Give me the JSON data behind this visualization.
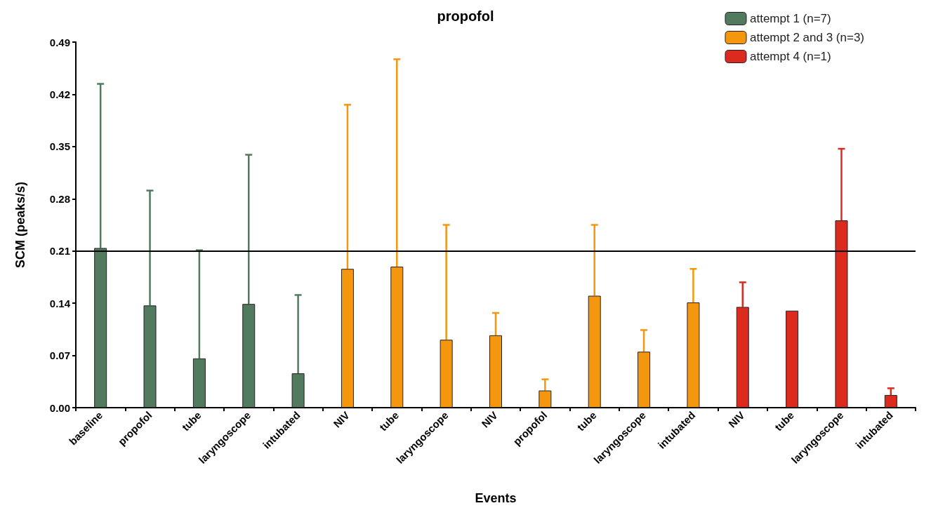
{
  "chart_data": {
    "type": "bar",
    "title": "propofol",
    "xlabel": "Events",
    "ylabel": "SCM (peaks/s)",
    "categories": [
      "baseline",
      "propofol",
      "tube",
      "laryngoscope",
      "intubated",
      "NIV",
      "tube",
      "laryngoscope",
      "NIV",
      "propofol",
      "tube",
      "laryngoscope",
      "intubated",
      "NIV",
      "tube",
      "laryngoscope",
      "intubated"
    ],
    "series": [
      {
        "name": "attempt 1 (n=7)",
        "color": "#527a5e",
        "values": [
          0.214,
          0.137,
          0.066,
          0.139,
          0.046,
          null,
          null,
          null,
          null,
          null,
          null,
          null,
          null,
          null,
          null,
          null,
          null
        ],
        "errors": [
          [
            0.214,
            0.434
          ],
          [
            0.137,
            0.291
          ],
          [
            0.066,
            0.211
          ],
          [
            0.139,
            0.339
          ],
          [
            0.046,
            0.151
          ],
          null,
          null,
          null,
          null,
          null,
          null,
          null,
          null,
          null,
          null,
          null,
          null
        ]
      },
      {
        "name": "attempt 2 and 3 (n=3)",
        "color": "#f5960f",
        "values": [
          null,
          null,
          null,
          null,
          null,
          0.186,
          0.189,
          0.091,
          0.097,
          0.023,
          0.15,
          0.075,
          0.141,
          null,
          null,
          null,
          null
        ],
        "errors": [
          null,
          null,
          null,
          null,
          null,
          [
            0.186,
            0.406
          ],
          [
            0.189,
            0.467
          ],
          [
            0.091,
            0.245
          ],
          [
            0.097,
            0.127
          ],
          [
            0.023,
            0.038
          ],
          [
            0.15,
            0.245
          ],
          [
            0.075,
            0.104
          ],
          [
            0.141,
            0.186
          ],
          null,
          null,
          null,
          null
        ]
      },
      {
        "name": "attempt 4 (n=1)",
        "color": "#dc2a1e",
        "values": [
          null,
          null,
          null,
          null,
          null,
          null,
          null,
          null,
          null,
          null,
          null,
          null,
          null,
          0.135,
          0.13,
          0.251,
          0.017
        ],
        "errors": [
          null,
          null,
          null,
          null,
          null,
          null,
          null,
          null,
          null,
          null,
          null,
          null,
          null,
          [
            0.135,
            0.168
          ],
          null,
          [
            0.251,
            0.347
          ],
          [
            0.017,
            0.026
          ]
        ]
      }
    ],
    "ylim": [
      0,
      0.49
    ],
    "yticks": [
      {
        "value": 0,
        "label": "0.00"
      },
      0.07,
      0.14,
      0.21,
      0.28,
      0.35,
      0.42,
      0.49
    ],
    "ref_lines": [
      {
        "axis": "y",
        "value": 0.21,
        "color": "#000000"
      }
    ],
    "grid": false,
    "legend": "top right"
  }
}
